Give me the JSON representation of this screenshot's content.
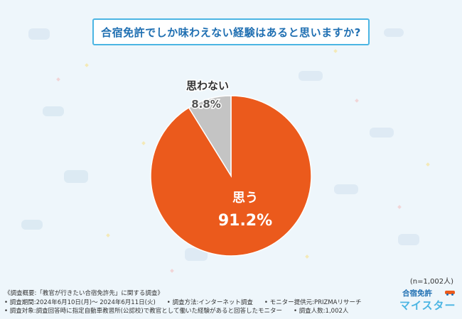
{
  "title": "合宿免許でしか味わえない経験はあると思いますか?",
  "chart_data": {
    "type": "pie",
    "slices": [
      {
        "label": "思う",
        "value": 91.2,
        "color": "#eb5a1c",
        "value_text": "91.2%"
      },
      {
        "label": "思わない",
        "value": 8.8,
        "color": "#c4c4c4",
        "value_text": "8.8%"
      }
    ]
  },
  "sample_note": "(n=1,002人)",
  "footer": {
    "line1": "《調査概要:「教官が行きたい合宿免許先」に関する調査》",
    "period": "• 調査期間:2024年6月10日(月)〜 2024年6月11日(火)",
    "method": "• 調査方法:インターネット調査",
    "provider": "• モニター提供元:PRIZMAリサーチ",
    "target": "• 調査対象:調査回答時に指定自動車教習所(公認校)で教官として働いた経験があると回答したモニター",
    "count": "• 調査人数:1,002人"
  },
  "logo": {
    "top": "合宿免許",
    "bottom": "マイスター"
  }
}
